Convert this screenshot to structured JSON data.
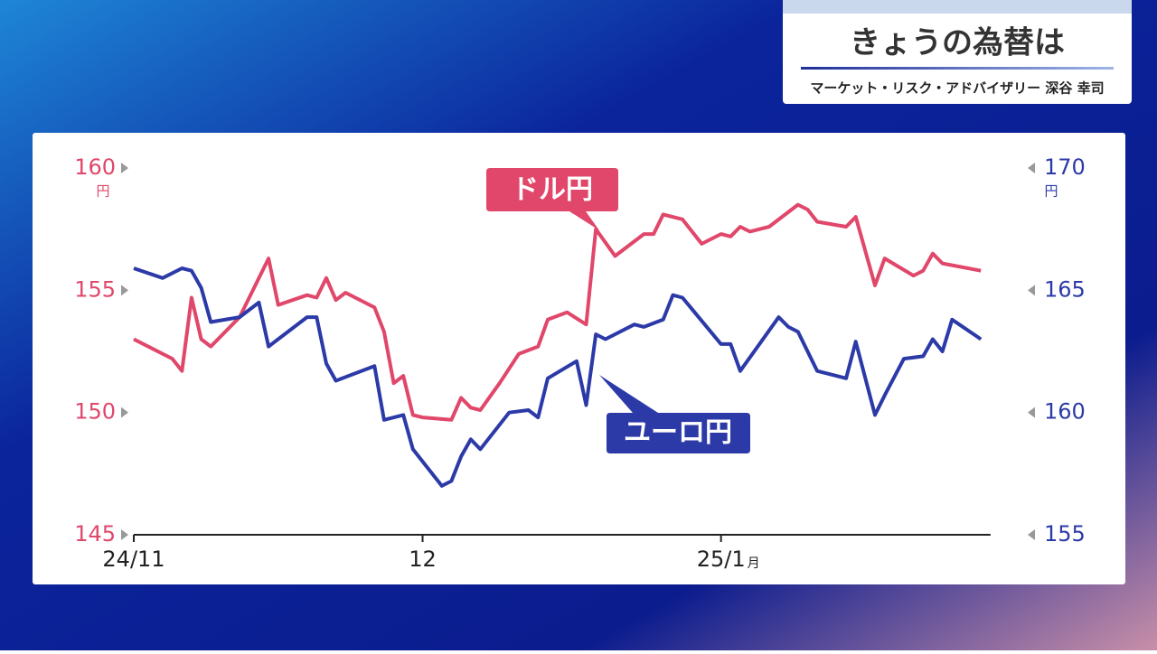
{
  "header": {
    "title": "きょうの為替は",
    "subtitle": "マーケット・リスク・アドバイザリー 深谷 幸司"
  },
  "chart_data": {
    "type": "line",
    "y_unit": "円",
    "y2_unit": "円",
    "xtick_unit": "月",
    "xlim": [
      0,
      89
    ],
    "xticks": [
      {
        "value": 0,
        "label": "24/11"
      },
      {
        "value": 30,
        "label": "12"
      },
      {
        "value": 61,
        "label": "25/1"
      }
    ],
    "ylim": [
      145,
      160
    ],
    "yticks": [
      145,
      150,
      155,
      160
    ],
    "y2lim": [
      155,
      170
    ],
    "y2ticks": [
      155,
      160,
      165,
      170
    ],
    "series": [
      {
        "name": "ドル円",
        "color": "#e0476a",
        "x": [
          0,
          4,
          5,
          6,
          7,
          8,
          11,
          14,
          15,
          18,
          19,
          20,
          21,
          22,
          24,
          25,
          26,
          27,
          28,
          29,
          30,
          33,
          34,
          35,
          36,
          38,
          40,
          42,
          43,
          45,
          47,
          48,
          50,
          53,
          54,
          55,
          57,
          59,
          61,
          62,
          63,
          64,
          66,
          69,
          70,
          71,
          74,
          75,
          77,
          78,
          81,
          82,
          83,
          84,
          88
        ],
        "values": [
          153.0,
          152.2,
          151.7,
          154.7,
          153.0,
          152.7,
          153.9,
          156.3,
          154.4,
          154.8,
          154.7,
          155.5,
          154.6,
          154.9,
          154.5,
          154.3,
          153.3,
          151.2,
          151.5,
          149.9,
          149.8,
          149.7,
          150.6,
          150.2,
          150.1,
          151.2,
          152.4,
          152.7,
          153.8,
          154.1,
          153.6,
          157.5,
          156.4,
          157.3,
          157.3,
          158.1,
          157.9,
          156.9,
          157.3,
          157.2,
          157.6,
          157.4,
          157.6,
          158.5,
          158.3,
          157.8,
          157.6,
          158.0,
          155.2,
          156.3,
          155.6,
          155.8,
          156.5,
          156.1,
          155.8
        ]
      },
      {
        "name": "ユーロ円",
        "color": "#2c3aa8",
        "axis": "y2",
        "x": [
          0,
          3,
          5,
          6,
          7,
          8,
          11,
          13,
          14,
          18,
          19,
          20,
          21,
          25,
          26,
          28,
          29,
          32,
          33,
          34,
          35,
          36,
          39,
          41,
          42,
          43,
          46,
          47,
          48,
          49,
          52,
          53,
          55,
          56,
          57,
          61,
          62,
          63,
          67,
          68,
          69,
          71,
          74,
          75,
          77,
          78,
          80,
          82,
          83,
          84,
          85,
          88
        ],
        "values": [
          165.9,
          165.5,
          165.9,
          165.8,
          165.1,
          163.7,
          163.9,
          164.5,
          162.7,
          163.9,
          163.9,
          162.0,
          161.3,
          161.9,
          159.7,
          159.9,
          158.5,
          157.0,
          157.2,
          158.2,
          158.9,
          158.5,
          160.0,
          160.1,
          159.8,
          161.4,
          162.1,
          160.3,
          163.2,
          163.0,
          163.6,
          163.5,
          163.8,
          164.8,
          164.7,
          162.8,
          162.8,
          161.7,
          163.9,
          163.5,
          163.3,
          161.7,
          161.4,
          162.9,
          159.9,
          160.7,
          162.2,
          162.3,
          163.0,
          162.5,
          163.8,
          163.0
        ]
      }
    ]
  }
}
